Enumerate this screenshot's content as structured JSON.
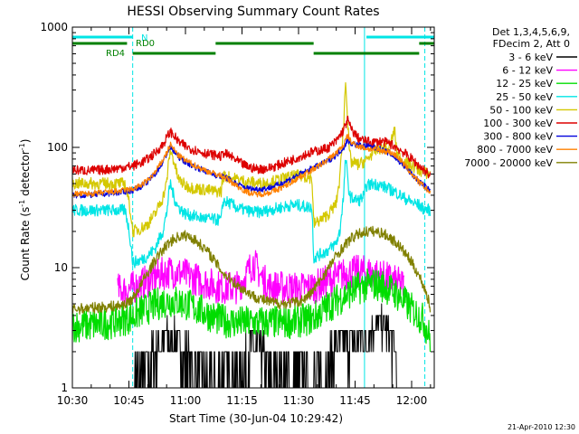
{
  "chart_data": {
    "type": "line",
    "title": "HESSI Observing Summary Count Rates",
    "xlabel": "Start Time (30-Jun-04 10:29:42)",
    "ylabel_main": "Count Rate (s",
    "ylabel_sup1": "-1",
    "ylabel_mid": " detector",
    "ylabel_sup2": "-1",
    "ylabel_end": ")",
    "footer": "21-Apr-2010 12:30",
    "x_axis": {
      "unit": "minutes after 10:30 UT",
      "range": [
        0,
        96
      ],
      "ticks": [
        {
          "t": 0,
          "label": "10:30"
        },
        {
          "t": 15,
          "label": "10:45"
        },
        {
          "t": 30,
          "label": "11:00"
        },
        {
          "t": 45,
          "label": "11:15"
        },
        {
          "t": 60,
          "label": "11:30"
        },
        {
          "t": 75,
          "label": "11:45"
        },
        {
          "t": 90,
          "label": "12:00"
        }
      ]
    },
    "y_axis": {
      "scale": "log",
      "range": [
        1,
        1000
      ],
      "ticks": [
        {
          "v": 1,
          "label": "1"
        },
        {
          "v": 10,
          "label": "10"
        },
        {
          "v": 100,
          "label": "100"
        },
        {
          "v": 1000,
          "label": "1000"
        }
      ]
    },
    "legend": {
      "position": "right",
      "header": [
        "Det 1,3,4,5,6,9,",
        "FDecim 2, Att 0"
      ],
      "entries": [
        {
          "label": "3 - 6 keV",
          "color": "#000000"
        },
        {
          "label": "6 - 12 keV",
          "color": "#ff00ff"
        },
        {
          "label": "12 - 25 keV",
          "color": "#00dd00"
        },
        {
          "label": "25 - 50 keV",
          "color": "#00e5e5"
        },
        {
          "label": "50 - 100 keV",
          "color": "#d4c800"
        },
        {
          "label": "100 - 300 keV",
          "color": "#dd0000"
        },
        {
          "label": "300 - 800 keV",
          "color": "#0000dd"
        },
        {
          "label": "800 - 7000 keV",
          "color": "#ff8000"
        },
        {
          "label": "7000 - 20000 keV",
          "color": "#808000"
        }
      ]
    },
    "flags": [
      {
        "label": "N",
        "color": "#00e5e5",
        "segments": [
          [
            -1,
            16
          ],
          [
            78,
            96
          ]
        ]
      },
      {
        "label": "RD0",
        "color": "#008000",
        "segments": [
          [
            -1,
            14.5
          ],
          [
            38,
            64
          ],
          [
            92,
            96
          ]
        ]
      },
      {
        "label": "RD4",
        "color": "#008000",
        "segments": [
          [
            16,
            38
          ],
          [
            64,
            92
          ]
        ]
      }
    ],
    "vertical_markers": {
      "solid": [
        {
          "t": 0,
          "color": "#00e5e5"
        },
        {
          "t": 77.5,
          "color": "#00e5e5"
        }
      ],
      "dashed": [
        {
          "t": 16,
          "color": "#00e5e5"
        },
        {
          "t": 93.5,
          "color": "#00e5e5"
        }
      ]
    },
    "series": [
      {
        "name": "3 - 6 keV",
        "color": "#000000",
        "x": [
          16.5,
          18,
          20,
          22,
          24,
          26,
          28,
          30,
          32,
          34,
          36,
          46,
          48,
          50,
          52,
          64,
          66,
          68,
          70,
          72,
          74,
          76,
          78,
          80,
          82,
          84,
          86
        ],
        "y": [
          1,
          1.1,
          1.6,
          2.0,
          2.5,
          2.6,
          2.3,
          1.8,
          1.3,
          1.1,
          1,
          1.5,
          2.2,
          2.0,
          1.3,
          1,
          1.2,
          1.5,
          2.2,
          2.4,
          2.5,
          2.4,
          2.6,
          3.2,
          3.5,
          2.7,
          2.0
        ]
      },
      {
        "name": "6 - 12 keV",
        "color": "#ff00ff",
        "x": [
          12,
          14,
          16,
          18,
          20,
          22,
          24,
          26,
          28,
          30,
          32,
          34,
          36,
          38,
          40,
          44,
          46,
          48,
          50,
          52,
          56,
          60,
          64,
          66,
          68,
          70,
          72,
          74,
          76,
          78,
          80,
          82,
          84,
          86,
          88
        ],
        "y": [
          6.5,
          6.5,
          6.8,
          7.2,
          7.8,
          8.4,
          8.9,
          9.3,
          9.1,
          8.7,
          8.2,
          7.8,
          7.4,
          7.0,
          6.8,
          6.9,
          8.5,
          11,
          8.5,
          7.0,
          6.8,
          6.7,
          6.9,
          7.3,
          7.8,
          8.3,
          8.8,
          9.1,
          9.3,
          9.2,
          8.9,
          8.5,
          8.0,
          7.5,
          7.0
        ]
      },
      {
        "name": "12 - 25 keV",
        "color": "#00dd00",
        "x": [
          0,
          4,
          8,
          12,
          16,
          18,
          20,
          22,
          24,
          26,
          28,
          30,
          32,
          34,
          36,
          38,
          40,
          44,
          48,
          52,
          56,
          60,
          64,
          66,
          68,
          70,
          72,
          74,
          76,
          78,
          80,
          82,
          84,
          86,
          88,
          90,
          93,
          95
        ],
        "y": [
          3.3,
          3.3,
          3.4,
          3.6,
          3.9,
          4.3,
          4.6,
          4.9,
          5.2,
          5.3,
          5.2,
          5.0,
          4.7,
          4.4,
          4.1,
          3.8,
          3.6,
          3.5,
          3.5,
          3.5,
          3.5,
          3.6,
          3.8,
          4.3,
          4.8,
          5.3,
          5.8,
          6.3,
          6.8,
          7.1,
          7.3,
          7.1,
          6.7,
          6.0,
          5.2,
          4.5,
          3.7,
          2.5
        ]
      },
      {
        "name": "25 - 50 keV",
        "color": "#00e5e5",
        "x": [
          0,
          4,
          8,
          12,
          14,
          16,
          18,
          20,
          22,
          24,
          25,
          26,
          27,
          28,
          30,
          32,
          34,
          36,
          38,
          39.5,
          40,
          42,
          44,
          46,
          48,
          50,
          52,
          54,
          56,
          58,
          60,
          62,
          63.5,
          64,
          66,
          68,
          70,
          71,
          72,
          72.5,
          73,
          73.5,
          74,
          76,
          77.5,
          78,
          80,
          82,
          84,
          86,
          88,
          90,
          92,
          93,
          95
        ],
        "y": [
          30,
          30,
          30,
          30,
          30,
          11,
          11.5,
          12.5,
          14.5,
          20,
          28,
          50,
          38,
          32,
          28,
          27,
          26,
          25.5,
          25,
          25,
          36,
          34,
          31,
          30,
          29,
          29,
          30,
          31,
          32,
          33,
          33,
          32,
          32,
          12,
          13,
          14,
          16,
          20,
          40,
          82,
          55,
          40,
          38,
          36,
          40,
          48,
          50,
          48,
          45,
          42,
          38,
          35,
          33,
          31,
          30
        ]
      },
      {
        "name": "50 - 100 keV",
        "color": "#d4c800",
        "x": [
          0,
          4,
          8,
          12,
          14,
          16,
          18,
          20,
          22,
          24,
          25,
          26,
          27,
          28,
          30,
          32,
          34,
          36,
          38,
          39.5,
          40,
          42,
          44,
          46,
          48,
          50,
          52,
          54,
          56,
          58,
          60,
          62,
          63.5,
          64,
          66,
          68,
          70,
          71,
          72,
          72.5,
          73,
          73.5,
          74,
          76,
          78,
          80,
          82,
          84,
          85.5,
          86,
          88,
          90,
          92,
          93,
          95
        ],
        "y": [
          50,
          50,
          50,
          50,
          50,
          20,
          21,
          23,
          28,
          38,
          50,
          95,
          75,
          55,
          48,
          46,
          45,
          44,
          43,
          43,
          58,
          56,
          54,
          52,
          51,
          50,
          51,
          53,
          55,
          57,
          58,
          57,
          56,
          23,
          25,
          28,
          34,
          55,
          150,
          370,
          160,
          90,
          75,
          72,
          78,
          92,
          100,
          95,
          140,
          90,
          75,
          70,
          65,
          62,
          60
        ]
      },
      {
        "name": "100 - 300 keV",
        "color": "#dd0000",
        "x": [
          0,
          4,
          8,
          12,
          16,
          18,
          20,
          22,
          24,
          25,
          26,
          27,
          28,
          30,
          32,
          34,
          36,
          38,
          39.5,
          40,
          42,
          44,
          46,
          48,
          50,
          52,
          54,
          56,
          58,
          60,
          62,
          64,
          66,
          68,
          70,
          72,
          73,
          74,
          76,
          78,
          80,
          82,
          84,
          86,
          88,
          90,
          92,
          94,
          95
        ],
        "y": [
          65,
          64,
          65,
          67,
          70,
          74,
          80,
          90,
          105,
          120,
          135,
          125,
          112,
          102,
          96,
          92,
          88,
          86,
          84,
          90,
          84,
          76,
          70,
          67,
          66,
          67,
          70,
          74,
          78,
          83,
          88,
          92,
          95,
          100,
          112,
          140,
          170,
          140,
          118,
          112,
          110,
          112,
          108,
          100,
          90,
          80,
          70,
          62,
          58
        ]
      },
      {
        "name": "300 - 800 keV",
        "color": "#0000dd",
        "x": [
          0,
          4,
          8,
          12,
          16,
          18,
          20,
          22,
          24,
          25,
          26,
          27,
          28,
          30,
          32,
          34,
          36,
          38,
          39.5,
          40,
          42,
          44,
          46,
          48,
          50,
          52,
          54,
          56,
          58,
          60,
          62,
          64,
          66,
          68,
          70,
          72,
          73,
          74,
          76,
          78,
          80,
          82,
          84,
          86,
          88,
          90,
          92,
          94,
          95
        ],
        "y": [
          40,
          40,
          41,
          42,
          44,
          47,
          52,
          60,
          75,
          88,
          100,
          92,
          84,
          76,
          70,
          66,
          62,
          59,
          57,
          58,
          53,
          49,
          46,
          45,
          45,
          46,
          48,
          51,
          55,
          59,
          63,
          68,
          72,
          78,
          86,
          100,
          115,
          108,
          104,
          102,
          100,
          96,
          90,
          80,
          70,
          60,
          52,
          46,
          43
        ]
      },
      {
        "name": "800 - 7000 keV",
        "color": "#ff8000",
        "x": [
          0,
          4,
          8,
          12,
          16,
          18,
          20,
          22,
          24,
          25,
          26,
          27,
          28,
          30,
          32,
          34,
          36,
          38,
          39.5,
          40,
          42,
          44,
          46,
          48,
          50,
          52,
          54,
          56,
          58,
          60,
          62,
          64,
          66,
          68,
          70,
          72,
          73,
          74,
          76,
          78,
          80,
          82,
          84,
          86,
          88,
          90,
          92,
          94,
          95
        ],
        "y": [
          41,
          41,
          42,
          43,
          45,
          48,
          53,
          62,
          78,
          90,
          105,
          96,
          86,
          78,
          72,
          67,
          63,
          60,
          58,
          57,
          52,
          47,
          43,
          41,
          41,
          42,
          44,
          47,
          51,
          56,
          61,
          66,
          72,
          80,
          90,
          105,
          125,
          110,
          102,
          98,
          96,
          94,
          92,
          85,
          72,
          60,
          51,
          45,
          41
        ]
      },
      {
        "name": "7000 - 20000 keV",
        "color": "#808000",
        "x": [
          0,
          4,
          8,
          12,
          14,
          16,
          18,
          20,
          22,
          24,
          26,
          28,
          30,
          32,
          34,
          36,
          38,
          40,
          44,
          48,
          52,
          56,
          60,
          62,
          64,
          66,
          68,
          70,
          72,
          74,
          76,
          78,
          80,
          82,
          84,
          86,
          88,
          90,
          92,
          94,
          95
        ],
        "y": [
          4.5,
          4.6,
          4.7,
          4.8,
          5,
          5.5,
          7,
          9,
          11.5,
          14,
          16.5,
          18,
          18.5,
          17.5,
          15.5,
          13.5,
          11,
          9,
          7,
          5.8,
          5.2,
          5,
          5.2,
          5.6,
          6.5,
          8,
          10,
          12.5,
          15,
          17.5,
          19,
          20,
          20,
          19.5,
          18,
          16,
          13.5,
          11,
          8.5,
          6,
          4.5
        ]
      }
    ]
  }
}
